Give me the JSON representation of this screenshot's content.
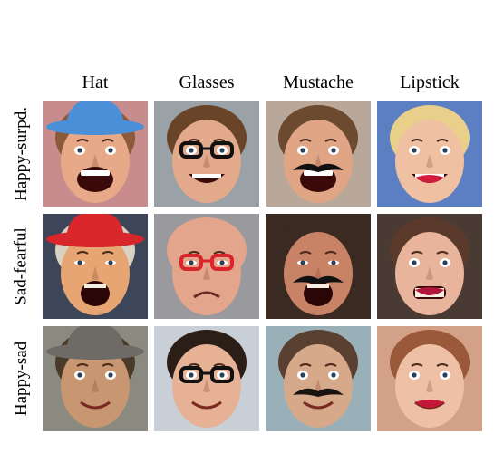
{
  "columns": [
    "Hat",
    "Glasses",
    "Mustache",
    "Lipstick"
  ],
  "rows": [
    {
      "label": "Happy-surpd.",
      "cells": [
        {
          "name": "happy-surprised-hat",
          "bg": "#c88c8c",
          "skin": "#e7a987",
          "hair": "#8a5a3a",
          "accessory": "hat",
          "accColor": "#4a8fd8",
          "mouth": "open-wide"
        },
        {
          "name": "happy-surprised-glasses",
          "bg": "#9aa2a8",
          "skin": "#e2a98a",
          "hair": "#6a4428",
          "accessory": "glasses",
          "accColor": "#111111",
          "mouth": "grin"
        },
        {
          "name": "happy-surprised-mustache",
          "bg": "#b9a79a",
          "skin": "#e0a585",
          "hair": "#6b4a30",
          "accessory": "mustache",
          "accColor": "#111111",
          "mouth": "open-wide"
        },
        {
          "name": "happy-surprised-lipstick",
          "bg": "#5b7fc2",
          "skin": "#f0c0a2",
          "hair": "#e8cf8a",
          "accessory": "lipstick",
          "accColor": "#d01c3a",
          "mouth": "grin"
        }
      ]
    },
    {
      "label": "Sad-fearful",
      "cells": [
        {
          "name": "sad-fearful-hat",
          "bg": "#3c4658",
          "skin": "#e6a572",
          "hair": "#d9d2c2",
          "accessory": "hat",
          "accColor": "#d8262a",
          "mouth": "shout"
        },
        {
          "name": "sad-fearful-glasses",
          "bg": "#9a9a9e",
          "skin": "#e3a58c",
          "hair": "#e3a58c",
          "accessory": "glasses",
          "accColor": "#d8262a",
          "mouth": "frown"
        },
        {
          "name": "sad-fearful-mustache",
          "bg": "#3a2a22",
          "skin": "#c88266",
          "hair": "#3a2a22",
          "accessory": "mustache",
          "accColor": "#111111",
          "mouth": "shout"
        },
        {
          "name": "sad-fearful-lipstick",
          "bg": "#4a3a34",
          "skin": "#e8b49c",
          "hair": "#5a3a2a",
          "accessory": "lipstick",
          "accColor": "#b0163a",
          "mouth": "grimace"
        }
      ]
    },
    {
      "label": "Happy-sad",
      "cells": [
        {
          "name": "happy-sad-hat",
          "bg": "#8a8a80",
          "skin": "#c99672",
          "hair": "#4a3a2a",
          "accessory": "hat",
          "accColor": "#6e6a66",
          "mouth": "smile"
        },
        {
          "name": "happy-sad-glasses",
          "bg": "#c8cfd6",
          "skin": "#e6b195",
          "hair": "#2a1e16",
          "accessory": "glasses",
          "accColor": "#111111",
          "mouth": "smile"
        },
        {
          "name": "happy-sad-mustache",
          "bg": "#9ab0b8",
          "skin": "#d6a98a",
          "hair": "#5a4030",
          "accessory": "mustache",
          "accColor": "#1a1410",
          "mouth": "smile"
        },
        {
          "name": "happy-sad-lipstick",
          "bg": "#d3a088",
          "skin": "#eec0a6",
          "hair": "#9a5a3a",
          "accessory": "lipstick",
          "accColor": "#c41838",
          "mouth": "smile"
        }
      ]
    }
  ]
}
